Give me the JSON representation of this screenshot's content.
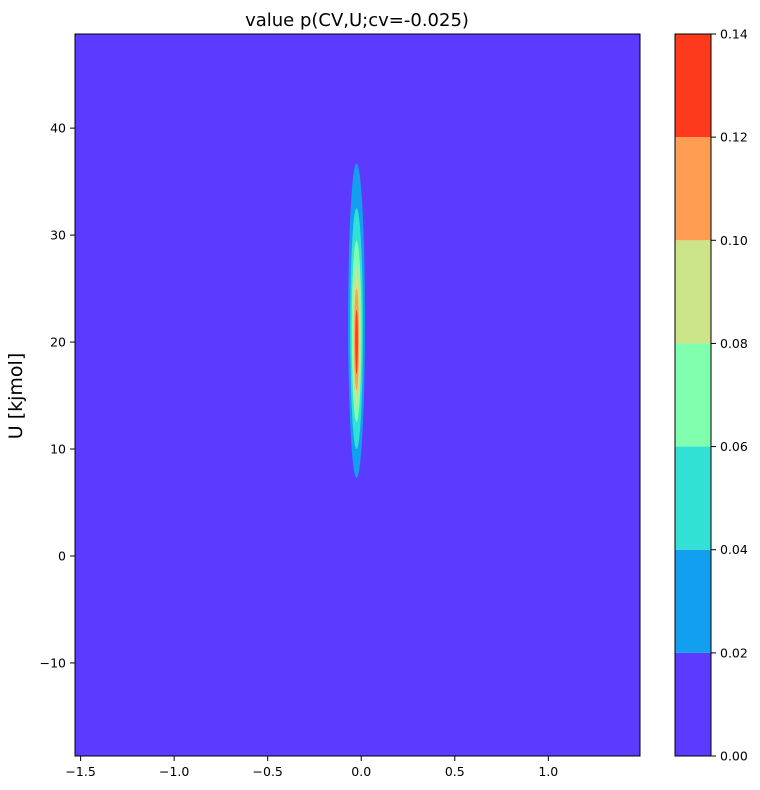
{
  "chart_data": {
    "type": "contour",
    "title": "value p(CV,U;cv=-0.025)",
    "xlabel": "",
    "ylabel": "U [kjmol]",
    "xlim": [
      -1.53,
      1.49
    ],
    "ylim": [
      -18.7,
      48.8
    ],
    "x_ticks": [
      -1.5,
      -1.0,
      -0.5,
      0.0,
      0.5,
      1.0
    ],
    "x_tick_labels": [
      "−1.5",
      "−1.0",
      "−0.5",
      "0.0",
      "0.5",
      "1.0"
    ],
    "y_ticks": [
      -10,
      0,
      10,
      20,
      30,
      40
    ],
    "y_tick_labels": [
      "−10",
      "0",
      "10",
      "20",
      "30",
      "40"
    ],
    "colorbar": {
      "levels": [
        0.0,
        0.02,
        0.04,
        0.06,
        0.08,
        0.1,
        0.12,
        0.14
      ],
      "tick_labels": [
        "0.00",
        "0.02",
        "0.04",
        "0.06",
        "0.08",
        "0.10",
        "0.12",
        "0.14"
      ],
      "colors": [
        "#5c3aff",
        "#139ff0",
        "#33e0d6",
        "#80ffae",
        "#cbe487",
        "#ff9d52",
        "#ff3a1c"
      ]
    },
    "peak": {
      "cv": -0.025,
      "U": 20.0,
      "contours": [
        {
          "level_min": 0.02,
          "cv_half_width": 0.045,
          "U_min": 7.3,
          "U_max": 36.7
        },
        {
          "level_min": 0.04,
          "cv_half_width": 0.034,
          "U_min": 10.0,
          "U_max": 32.5
        },
        {
          "level_min": 0.06,
          "cv_half_width": 0.026,
          "U_min": 12.5,
          "U_max": 29.5
        },
        {
          "level_min": 0.08,
          "cv_half_width": 0.019,
          "U_min": 14.0,
          "U_max": 27.0
        },
        {
          "level_min": 0.1,
          "cv_half_width": 0.013,
          "U_min": 15.5,
          "U_max": 25.0
        },
        {
          "level_min": 0.12,
          "cv_half_width": 0.007,
          "U_min": 17.0,
          "U_max": 23.0
        }
      ]
    }
  }
}
